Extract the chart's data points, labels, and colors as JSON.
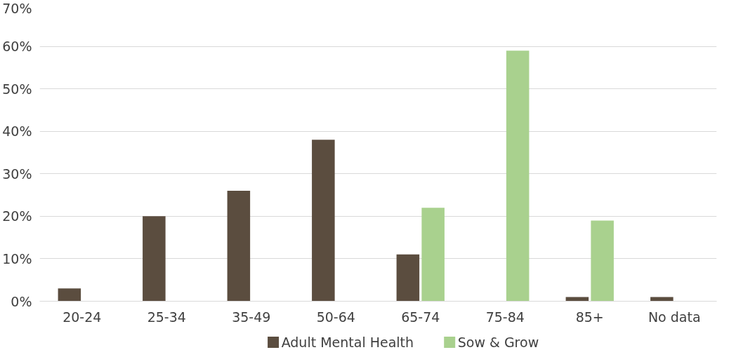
{
  "chart_data": {
    "type": "bar",
    "categories": [
      "20-24",
      "25-34",
      "35-49",
      "50-64",
      "65-74",
      "75-84",
      "85+",
      "No data"
    ],
    "series": [
      {
        "name": "Adult Mental Health",
        "color": "#5b4d3f",
        "values": [
          3,
          20,
          26,
          38,
          11,
          0,
          1,
          1
        ]
      },
      {
        "name": "Sow & Grow",
        "color": "#a9d18e",
        "values": [
          0,
          0,
          0,
          0,
          22,
          59,
          19,
          0
        ]
      }
    ],
    "ylim": [
      0,
      70
    ],
    "yticks": [
      {
        "value": 0,
        "label": "0%"
      },
      {
        "value": 10,
        "label": "10%"
      },
      {
        "value": 20,
        "label": "20%"
      },
      {
        "value": 30,
        "label": "30%"
      },
      {
        "value": 40,
        "label": "40%"
      },
      {
        "value": 50,
        "label": "50%"
      },
      {
        "value": 60,
        "label": "60%"
      },
      {
        "value": 70,
        "label": "70%"
      }
    ],
    "grid": "y",
    "legend": "bottom"
  }
}
